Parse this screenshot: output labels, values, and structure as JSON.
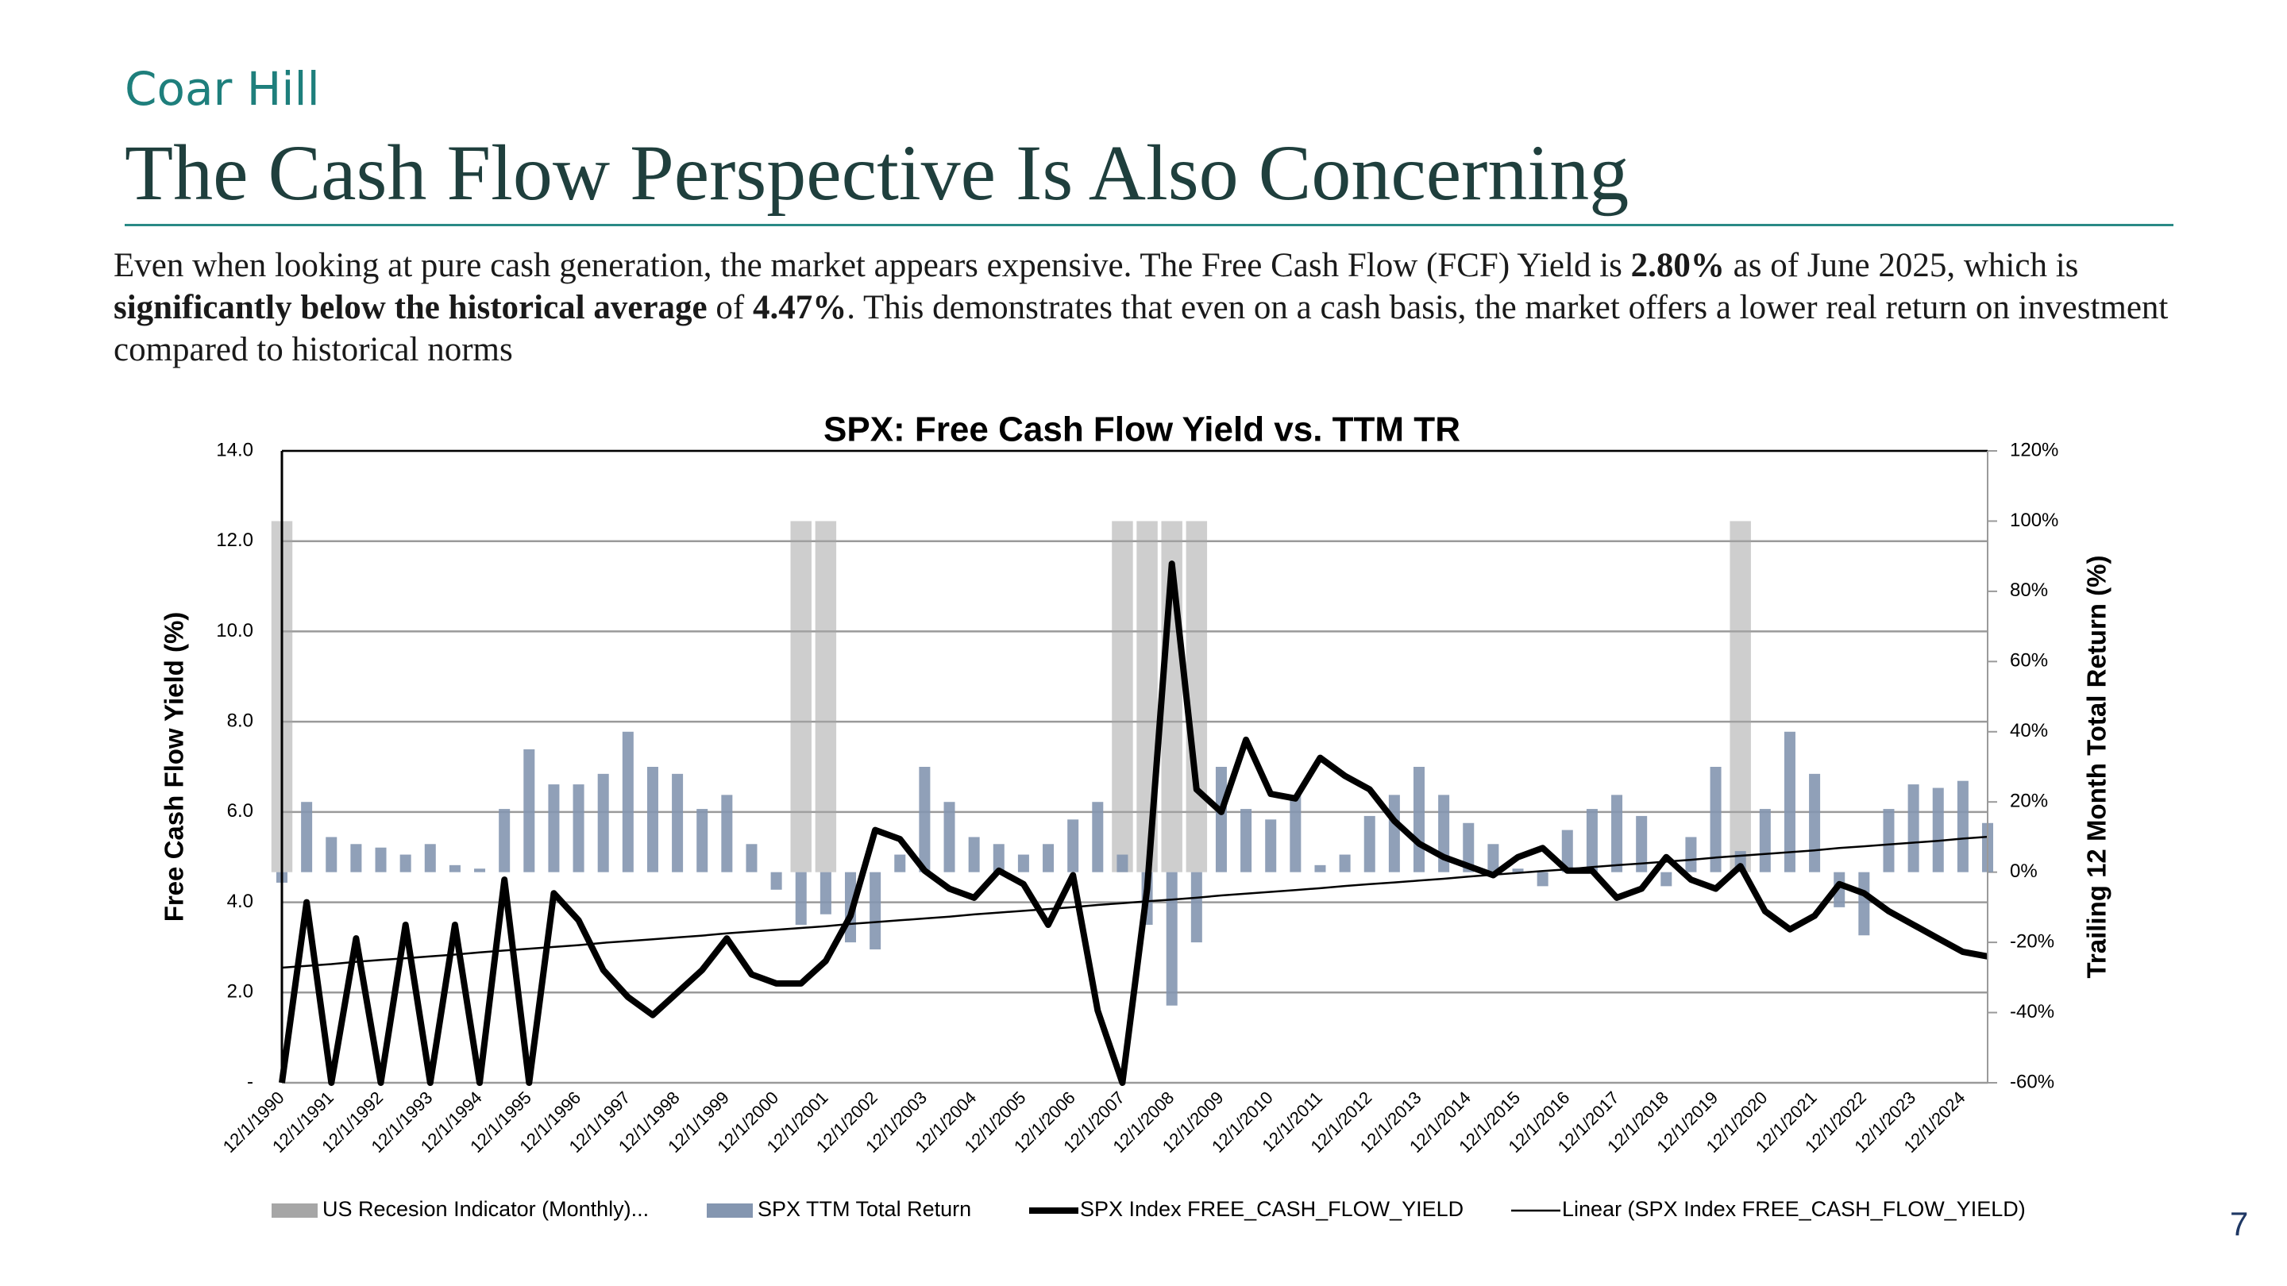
{
  "header": {
    "brand": "Coar Hill",
    "title": "The Cash Flow Perspective Is Also Concerning"
  },
  "paragraph": [
    {
      "text": "Even when looking at pure cash generation, the market appears expensive. The Free Cash Flow (FCF) Yield is ",
      "bold": false
    },
    {
      "text": "2.80%",
      "bold": true
    },
    {
      "text": " as of June 2025, which is ",
      "bold": false
    },
    {
      "text": "significantly below the historical average",
      "bold": true
    },
    {
      "text": " of ",
      "bold": false
    },
    {
      "text": "4.47%",
      "bold": true
    },
    {
      "text": ". This demonstrates that even on a cash basis, the market offers a lower real return on investment compared to historical norms",
      "bold": false
    }
  ],
  "page_number": "7",
  "chart_data": {
    "type": "combo",
    "title": "SPX: Free Cash Flow Yield vs. TTM TR",
    "ylabel": "Free Cash Flow Yield (%)",
    "y2label": "Trailing 12 Month Total Return (%)",
    "categories": [
      "12/1/1990",
      null,
      "12/1/1991",
      null,
      "12/1/1992",
      null,
      "12/1/1993",
      null,
      "12/1/1994",
      null,
      "12/1/1995",
      null,
      "12/1/1996",
      null,
      "12/1/1997",
      null,
      "12/1/1998",
      null,
      "12/1/1999",
      null,
      "12/1/2000",
      null,
      "12/1/2001",
      null,
      "12/1/2002",
      null,
      "12/1/2003",
      null,
      "12/1/2004",
      null,
      "12/1/2005",
      null,
      "12/1/2006",
      null,
      "12/1/2007",
      null,
      "12/1/2008",
      null,
      "12/1/2009",
      null,
      "12/1/2010",
      null,
      "12/1/2011",
      null,
      "12/1/2012",
      null,
      "12/1/2013",
      null,
      "12/1/2014",
      null,
      "12/1/2015",
      null,
      "12/1/2016",
      null,
      "12/1/2017",
      null,
      "12/1/2018",
      null,
      "12/1/2019",
      null,
      "12/1/2020",
      null,
      "12/1/2021",
      null,
      "12/1/2022",
      null,
      "12/1/2023",
      null,
      "12/1/2024",
      null
    ],
    "series": [
      {
        "name": "US Recesion Indicator (Monthly)...",
        "type": "bar",
        "axis": "y2",
        "color": "#a6a6a6",
        "values": [
          100,
          0,
          0,
          0,
          0,
          0,
          0,
          0,
          0,
          0,
          0,
          0,
          0,
          0,
          0,
          0,
          0,
          0,
          0,
          0,
          0,
          100,
          100,
          0,
          0,
          0,
          0,
          0,
          0,
          0,
          0,
          0,
          0,
          0,
          100,
          100,
          100,
          100,
          0,
          0,
          0,
          0,
          0,
          0,
          0,
          0,
          0,
          0,
          0,
          0,
          0,
          0,
          0,
          0,
          0,
          0,
          0,
          0,
          0,
          100,
          0,
          0,
          0,
          0,
          0,
          0,
          0,
          0,
          0,
          0
        ]
      },
      {
        "name": "SPX TTM Total Return",
        "type": "bar",
        "axis": "y2",
        "color": "#8496b0",
        "values": [
          -3,
          20,
          10,
          8,
          7,
          5,
          8,
          2,
          1,
          18,
          35,
          25,
          25,
          28,
          40,
          30,
          28,
          18,
          22,
          8,
          -5,
          -15,
          -12,
          -20,
          -22,
          5,
          30,
          20,
          10,
          8,
          5,
          8,
          15,
          20,
          5,
          -15,
          -38,
          -20,
          30,
          18,
          15,
          22,
          2,
          5,
          16,
          22,
          30,
          22,
          14,
          8,
          1,
          -4,
          12,
          18,
          22,
          16,
          -4,
          10,
          30,
          6,
          18,
          40,
          28,
          -10,
          -18,
          18,
          25,
          24,
          26,
          14
        ]
      },
      {
        "name": "SPX Index FREE_CASH_FLOW_YIELD",
        "type": "line",
        "axis": "y",
        "color": "#000000",
        "values": [
          0,
          4.0,
          0,
          3.2,
          0,
          3.5,
          0,
          3.5,
          0,
          4.5,
          0,
          4.2,
          3.6,
          2.5,
          1.9,
          1.5,
          2.0,
          2.5,
          3.2,
          2.4,
          2.2,
          2.2,
          2.7,
          3.7,
          5.6,
          5.4,
          4.7,
          4.3,
          4.1,
          4.7,
          4.4,
          3.5,
          4.6,
          1.6,
          0,
          4.3,
          11.5,
          6.5,
          6.0,
          7.6,
          6.4,
          6.3,
          7.2,
          6.8,
          6.5,
          5.8,
          5.3,
          5.0,
          4.8,
          4.6,
          5.0,
          5.2,
          4.7,
          4.7,
          4.1,
          4.3,
          5.0,
          4.5,
          4.3,
          4.8,
          3.8,
          3.4,
          3.7,
          4.4,
          4.2,
          3.8,
          3.5,
          3.2,
          2.9,
          2.8
        ]
      },
      {
        "name": "Linear (SPX Index FREE_CASH_FLOW_YIELD)",
        "type": "line",
        "axis": "y",
        "color": "#000000",
        "values": [
          2.55,
          2.59,
          2.63,
          2.68,
          2.72,
          2.76,
          2.8,
          2.84,
          2.89,
          2.93,
          2.97,
          3.01,
          3.05,
          3.1,
          3.14,
          3.18,
          3.22,
          3.26,
          3.31,
          3.35,
          3.39,
          3.43,
          3.47,
          3.52,
          3.56,
          3.6,
          3.64,
          3.68,
          3.73,
          3.77,
          3.81,
          3.85,
          3.89,
          3.94,
          3.98,
          4.02,
          4.06,
          4.1,
          4.15,
          4.19,
          4.23,
          4.27,
          4.31,
          4.36,
          4.4,
          4.44,
          4.48,
          4.52,
          4.57,
          4.61,
          4.65,
          4.69,
          4.73,
          4.78,
          4.82,
          4.86,
          4.9,
          4.94,
          4.99,
          5.03,
          5.07,
          5.11,
          5.15,
          5.2,
          5.24,
          5.28,
          5.32,
          5.36,
          5.41,
          5.45
        ]
      }
    ],
    "ylim": [
      0,
      14
    ],
    "yticks": [
      {
        "value": 0,
        "label": "-"
      },
      {
        "value": 2,
        "label": "2.0"
      },
      {
        "value": 4,
        "label": "4.0"
      },
      {
        "value": 6,
        "label": "6.0"
      },
      {
        "value": 8,
        "label": "8.0"
      },
      {
        "value": 10,
        "label": "10.0"
      },
      {
        "value": 12,
        "label": "12.0"
      },
      {
        "value": 14,
        "label": "14.0"
      }
    ],
    "y2lim": [
      -60,
      120
    ],
    "y2ticks": [
      {
        "value": -60,
        "label": "-60%"
      },
      {
        "value": -40,
        "label": "-40%"
      },
      {
        "value": -20,
        "label": "-20%"
      },
      {
        "value": 0,
        "label": "0%"
      },
      {
        "value": 20,
        "label": "20%"
      },
      {
        "value": 40,
        "label": "40%"
      },
      {
        "value": 60,
        "label": "60%"
      },
      {
        "value": 80,
        "label": "80%"
      },
      {
        "value": 100,
        "label": "100%"
      },
      {
        "value": 120,
        "label": "120%"
      }
    ],
    "grid": true,
    "legend": "bottom"
  }
}
